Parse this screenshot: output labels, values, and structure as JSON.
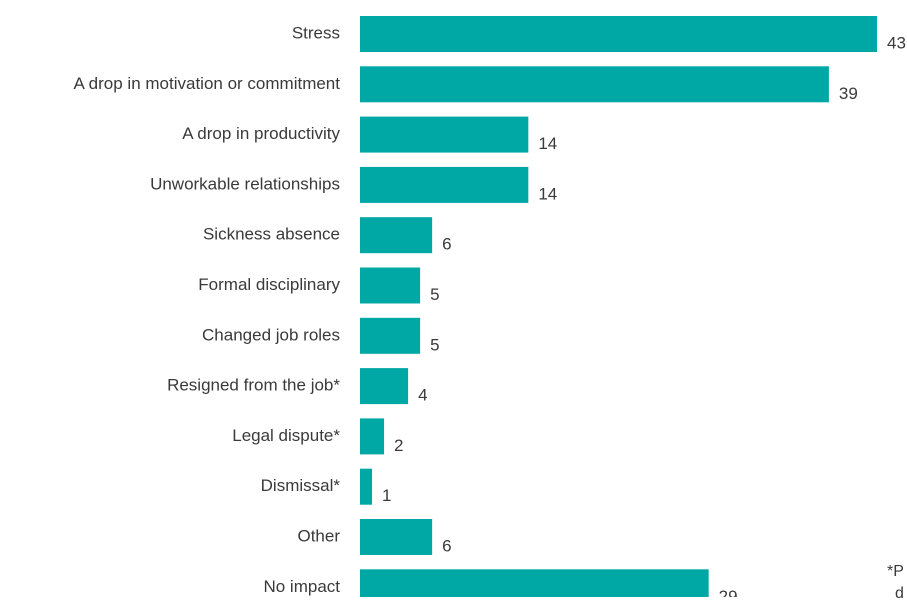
{
  "chart_data": {
    "type": "bar",
    "orientation": "horizontal",
    "bar_color": "#00a8a5",
    "title": "",
    "xlabel": "",
    "ylabel": "",
    "xlim": [
      0,
      43
    ],
    "grid": false,
    "categories": [
      "Stress",
      "A drop in motivation or commitment",
      "A drop in productivity",
      "Unworkable relationships",
      "Sickness absence",
      "Formal disciplinary",
      "Changed job roles",
      "Resigned from the job*",
      "Legal dispute*",
      "Dismissal*",
      "Other",
      "No impact"
    ],
    "values": [
      43,
      39,
      14,
      14,
      6,
      5,
      5,
      4,
      2,
      1,
      6,
      29
    ]
  },
  "footnote": {
    "line1": "*P",
    "line2": "d"
  }
}
